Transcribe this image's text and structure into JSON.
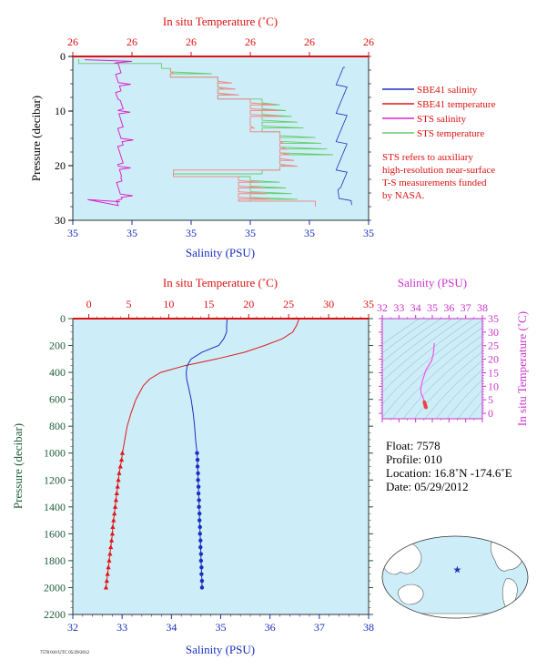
{
  "colors": {
    "panel_bg": "#cdeef8",
    "salinity": "#1a2fbf",
    "temperature": "#e01818",
    "sts_salinity": "#dd22cc",
    "sts_temperature": "#66cc66",
    "axis_temp": "#dd1111",
    "axis_sal": "#1a2fbf",
    "axis_press": "#1d5c3a",
    "ts_axis": "#cc33cc",
    "ts_curve": "#ee55ee",
    "ts_points": "#ee4444",
    "land": "#ffffff",
    "ocean": "#cdeef8"
  },
  "top_chart": {
    "title_top": "In situ Temperature (˚C)",
    "xlabel": "Salinity (PSU)",
    "ylabel": "Pressure (decibar)",
    "temp_ticks": [
      "26",
      "26",
      "26",
      "26",
      "26",
      "26"
    ],
    "sal_ticks": [
      "35",
      "35",
      "35",
      "35",
      "35",
      "35"
    ],
    "y_ticks": [
      "0",
      "10",
      "20",
      "30"
    ],
    "legend": [
      {
        "label": "SBE41 salinity",
        "color": "#1a2fbf"
      },
      {
        "label": "SBE41 temperature",
        "color": "#e01818"
      },
      {
        "label": "STS salinity",
        "color": "#dd22cc"
      },
      {
        "label": "STS temperature",
        "color": "#66cc66"
      }
    ],
    "note": [
      "STS refers to auxiliary",
      "high-resolution near-surface",
      "T-S measurements funded",
      "by NASA."
    ]
  },
  "chart_data": [
    {
      "type": "line",
      "title": "In situ Temperature (˚C)",
      "xlabel": "Salinity (PSU)",
      "ylabel": "Pressure (decibar)",
      "ylim": [
        0,
        30
      ],
      "series": [
        {
          "name": "STS salinity",
          "x_frac": [
            0.12,
            0.17,
            0.15,
            0.16,
            0.17,
            0.16,
            0.17,
            0.16,
            0.17,
            0.16,
            0.165,
            0.16
          ],
          "pressure": [
            1,
            1.5,
            2,
            4,
            6,
            8,
            10,
            14,
            18,
            22,
            25,
            27
          ]
        },
        {
          "name": "STS temperature",
          "x_frac": [
            0.0,
            0.33,
            0.52,
            0.64,
            0.78,
            0.82
          ],
          "pressure": [
            1,
            2,
            4,
            8,
            14,
            27
          ]
        },
        {
          "name": "SBE41 temperature",
          "x_frac": [
            0.33,
            0.52,
            0.64,
            0.74,
            0.82
          ],
          "pressure": [
            2,
            4,
            8,
            14,
            27
          ]
        },
        {
          "name": "SBE41 salinity",
          "x_frac": [
            0.92,
            0.91,
            0.93,
            0.9,
            0.93,
            0.91
          ],
          "pressure": [
            3,
            6,
            10,
            15,
            20,
            26
          ]
        }
      ]
    },
    {
      "type": "line",
      "title_top": "In situ Temperature (˚C)",
      "xlabel": "Salinity (PSU)",
      "ylabel": "Pressure (decibar)",
      "temp_ticks": [
        0,
        5,
        10,
        15,
        20,
        25,
        30,
        35
      ],
      "sal_ticks": [
        32,
        33,
        34,
        35,
        36,
        37,
        38
      ],
      "y_ticks": [
        0,
        200,
        400,
        600,
        800,
        1000,
        1200,
        1400,
        1600,
        1800,
        2000,
        2200
      ],
      "xlim_temp": [
        -2,
        35
      ],
      "xlim_sal": [
        32,
        38
      ],
      "ylim": [
        0,
        2200
      ],
      "temperature": {
        "name": "SBE41 temperature",
        "pressure": [
          0,
          50,
          100,
          150,
          200,
          250,
          300,
          350,
          400,
          450,
          500,
          600,
          700,
          800,
          900,
          1000
        ],
        "values": [
          26.3,
          26.0,
          25.5,
          24.2,
          22.0,
          19.5,
          16.0,
          12.0,
          9.0,
          7.6,
          6.8,
          5.9,
          5.3,
          4.8,
          4.5,
          4.2
        ]
      },
      "temperature_deep": {
        "pressure": [
          1000,
          1050,
          1100,
          1150,
          1200,
          1250,
          1300,
          1350,
          1400,
          1450,
          1500,
          1550,
          1600,
          1650,
          1700,
          1750,
          1800,
          1850,
          1900,
          1950,
          2000
        ],
        "values": [
          4.2,
          4.1,
          3.95,
          3.8,
          3.7,
          3.6,
          3.5,
          3.4,
          3.3,
          3.2,
          3.1,
          3.0,
          2.95,
          2.85,
          2.75,
          2.65,
          2.55,
          2.45,
          2.35,
          2.25,
          2.15
        ]
      },
      "salinity": {
        "name": "SBE41 salinity",
        "pressure": [
          0,
          50,
          100,
          150,
          200,
          250,
          300,
          350,
          400,
          450,
          500,
          600,
          700,
          800,
          900,
          1000
        ],
        "values": [
          35.13,
          35.12,
          35.12,
          35.06,
          34.96,
          34.62,
          34.4,
          34.32,
          34.3,
          34.31,
          34.34,
          34.4,
          34.44,
          34.47,
          34.49,
          34.52
        ]
      },
      "salinity_deep": {
        "pressure": [
          1000,
          1050,
          1100,
          1150,
          1200,
          1250,
          1300,
          1350,
          1400,
          1450,
          1500,
          1550,
          1600,
          1650,
          1700,
          1750,
          1800,
          1850,
          1900,
          1950,
          2000
        ],
        "values": [
          34.52,
          34.53,
          34.53,
          34.54,
          34.54,
          34.55,
          34.55,
          34.56,
          34.56,
          34.57,
          34.57,
          34.58,
          34.58,
          34.59,
          34.59,
          34.6,
          34.6,
          34.61,
          34.61,
          34.62,
          34.62
        ]
      }
    },
    {
      "type": "scatter",
      "xlabel": "Salinity (PSU)",
      "ylabel": "In situ Temperature (˚C)",
      "x_ticks": [
        32,
        33,
        34,
        35,
        36,
        37,
        38
      ],
      "y_ticks": [
        0,
        5,
        10,
        15,
        20,
        25,
        30,
        35
      ],
      "xlim": [
        32,
        38
      ],
      "ylim": [
        -2,
        35
      ],
      "salinity": [
        34.52,
        34.5,
        34.46,
        34.41,
        34.34,
        34.3,
        34.4,
        34.62,
        34.96,
        35.06,
        35.12
      ],
      "temperature": [
        4.2,
        4.7,
        5.6,
        6.3,
        7.0,
        9.0,
        12.0,
        16.0,
        19.5,
        22.0,
        26.0
      ]
    }
  ],
  "info": {
    "float": "Float:  7578",
    "profile": "Profile:  010",
    "location": "Location:  16.8˚N  -174.6˚E",
    "date": "Date:  05/29/2012"
  },
  "map": {
    "float_lat": 16.8,
    "float_lon": -174.6,
    "marker": "star-icon"
  },
  "footer": "7578 010 UTC 05/29/2012"
}
